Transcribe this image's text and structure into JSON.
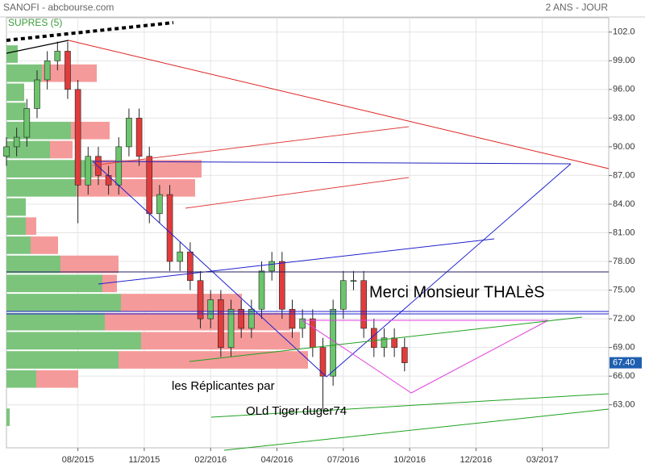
{
  "chart_data": {
    "type": "candlestick",
    "title": "SANOFI - abcbourse.com",
    "subtitle": "2 ANS - JOUR",
    "indicator": "SUPRES (5)",
    "annotations": [
      "Merci Monsieur THALèS",
      "les Réplicantes par",
      "OLd Tiger duger74"
    ],
    "x": [
      0,
      2,
      4,
      6,
      8,
      10,
      12,
      14,
      16,
      18,
      20,
      22,
      24,
      26,
      28,
      30,
      32,
      34,
      36,
      38,
      40,
      42,
      44,
      46,
      48,
      50,
      52,
      54,
      56,
      58,
      60,
      62,
      64,
      66,
      68,
      70,
      72,
      74,
      76,
      78
    ],
    "open": [
      89,
      90,
      91,
      94,
      97,
      99,
      100,
      96,
      86,
      89,
      87,
      86,
      90,
      93,
      89,
      83,
      85,
      78,
      79,
      76,
      72,
      74,
      69,
      73,
      71,
      73,
      77,
      78,
      73,
      71,
      72,
      69,
      66,
      73,
      76,
      76,
      71,
      69,
      70,
      69
    ],
    "high": [
      91,
      92,
      95,
      98,
      100,
      101,
      101,
      97,
      90,
      90,
      88,
      91,
      94,
      94,
      90,
      86,
      86,
      80,
      80,
      77,
      75,
      75,
      74,
      74,
      74,
      78,
      79,
      79,
      74,
      73,
      73,
      70,
      74,
      77,
      77,
      77,
      72,
      71,
      71,
      70
    ],
    "low": [
      88,
      89,
      90,
      93,
      96,
      98,
      95,
      82,
      85,
      86,
      85,
      85,
      89,
      88,
      82,
      82,
      77,
      77,
      75,
      71,
      71,
      68,
      68,
      70,
      70,
      72,
      76,
      72,
      70,
      70,
      68,
      62.5,
      65,
      72,
      75,
      70,
      68,
      68,
      68,
      66.5
    ],
    "close": [
      90,
      91,
      94,
      97,
      99,
      100,
      96,
      86,
      89,
      87,
      86,
      90,
      93,
      89,
      83,
      85,
      78,
      79,
      76,
      72,
      74,
      69,
      73,
      71,
      73,
      77,
      78,
      73,
      71,
      72,
      69,
      66,
      73,
      76,
      76,
      71,
      69,
      70,
      69,
      67.4
    ],
    "up_color": "#6cc46c",
    "down_color": "#e03c3c",
    "xlim": [
      0,
      118
    ],
    "xticks": [
      {
        "value": 14,
        "label": "08/2015"
      },
      {
        "value": 27,
        "label": "11/2015"
      },
      {
        "value": 40,
        "label": "02/2016"
      },
      {
        "value": 53,
        "label": "04/2016"
      },
      {
        "value": 66,
        "label": "07/2016"
      },
      {
        "value": 79,
        "label": "10/2016"
      },
      {
        "value": 92,
        "label": "12/2016"
      },
      {
        "value": 105,
        "label": "03/2017"
      }
    ],
    "ylim": [
      58.5,
      103.5
    ],
    "yticks": [
      {
        "value": 102,
        "label": "102.0"
      },
      {
        "value": 99,
        "label": "99.00"
      },
      {
        "value": 96,
        "label": "96.00"
      },
      {
        "value": 93,
        "label": "93.00"
      },
      {
        "value": 90,
        "label": "90.00"
      },
      {
        "value": 87,
        "label": "87.00"
      },
      {
        "value": 84,
        "label": "84.00"
      },
      {
        "value": 81,
        "label": "81.00"
      },
      {
        "value": 78,
        "label": "78.00"
      },
      {
        "value": 75,
        "label": "75.00"
      },
      {
        "value": 72,
        "label": "72.00"
      },
      {
        "value": 69,
        "label": "69.00"
      },
      {
        "value": 66,
        "label": "66.00"
      },
      {
        "value": 63,
        "label": "63.00"
      }
    ],
    "last_price": {
      "value": 67.4,
      "label": "67.40"
    },
    "volume_profile": {
      "bins": [
        100.7,
        98.7,
        96.7,
        94.7,
        92.7,
        90.7,
        88.7,
        86.7,
        84.7,
        82.7,
        80.7,
        78.7,
        76.7,
        74.7,
        72.7,
        70.7,
        68.7,
        66.7,
        64.7,
        62.7,
        60.7
      ],
      "up": [
        14,
        44,
        22,
        24,
        80,
        54,
        107,
        87,
        24,
        24,
        30,
        67,
        119,
        142,
        122,
        167,
        139,
        37,
        0,
        4
      ],
      "down": [
        0,
        68,
        0,
        0,
        48,
        28,
        135,
        147,
        0,
        13,
        34,
        72,
        18,
        150,
        230,
        197,
        235,
        52,
        0,
        0
      ],
      "xlim": [
        0,
        747
      ],
      "up_color": "#7cc47c",
      "down_color": "#f59a9a"
    }
  }
}
